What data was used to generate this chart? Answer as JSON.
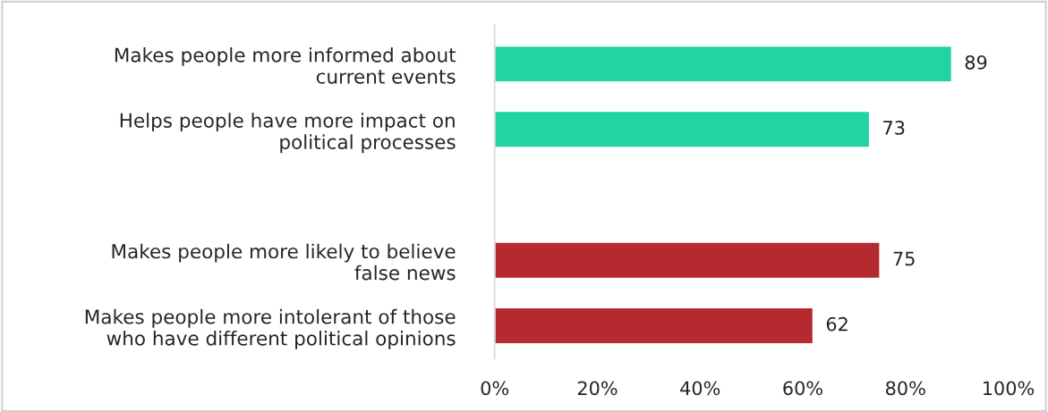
{
  "chart_data": {
    "type": "bar",
    "orientation": "horizontal",
    "categories": [
      "Makes people more informed about\ncurrent events",
      "Helps people have more impact on\npolitical processes",
      null,
      "Makes people more likely to believe\nfalse news",
      "Makes people more intolerant of those\nwho have different political opinions"
    ],
    "values": [
      89,
      73,
      null,
      75,
      62
    ],
    "colors": [
      "#22d3a3",
      "#22d3a3",
      null,
      "#b52a30",
      "#b52a30"
    ],
    "data_labels": true,
    "xlim": [
      0,
      100
    ],
    "xticks": [
      {
        "value": 0,
        "label": "0%"
      },
      {
        "value": 20,
        "label": "20%"
      },
      {
        "value": 40,
        "label": "40%"
      },
      {
        "value": 60,
        "label": "60%"
      },
      {
        "value": 80,
        "label": "80%"
      },
      {
        "value": 100,
        "label": "100%"
      }
    ],
    "grid": false,
    "legend": false
  }
}
